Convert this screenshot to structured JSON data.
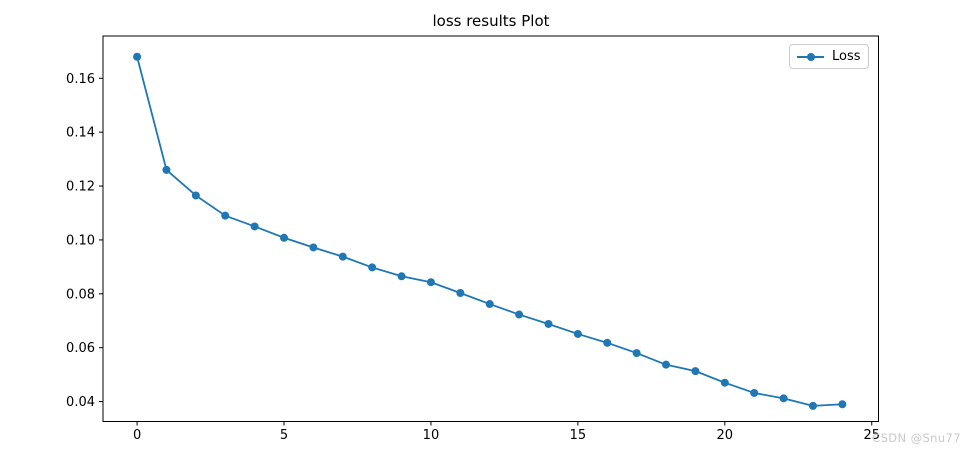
{
  "figure": {
    "background": "#ffffff"
  },
  "chart_data": {
    "type": "line",
    "title": "loss results Plot",
    "xlabel": "",
    "ylabel": "",
    "grid": false,
    "axis_color": "#000000",
    "x": [
      0,
      1,
      2,
      3,
      4,
      5,
      6,
      7,
      8,
      9,
      10,
      11,
      12,
      13,
      14,
      15,
      16,
      17,
      18,
      19,
      20,
      21,
      22,
      23,
      24
    ],
    "series": [
      {
        "name": "Loss",
        "color": "#1f77b4",
        "marker": "circle",
        "values": [
          0.168,
          0.126,
          0.1165,
          0.109,
          0.105,
          0.1008,
          0.0972,
          0.0938,
          0.0898,
          0.0865,
          0.0843,
          0.0803,
          0.0762,
          0.0723,
          0.0688,
          0.0651,
          0.0618,
          0.058,
          0.0537,
          0.0513,
          0.047,
          0.0432,
          0.0412,
          0.0384,
          0.039
        ]
      }
    ],
    "x_ticks": [
      0,
      5,
      10,
      15,
      20,
      25
    ],
    "y_ticks": [
      0.04,
      0.06,
      0.08,
      0.1,
      0.12,
      0.14,
      0.16
    ],
    "xlim": [
      -1.16,
      25.23
    ],
    "ylim": [
      0.0326,
      0.1757
    ],
    "legend": {
      "label": "Loss",
      "position": "upper-right"
    }
  },
  "watermark": {
    "text": "CSDN @Snu77",
    "color": "#c9c9c9"
  }
}
